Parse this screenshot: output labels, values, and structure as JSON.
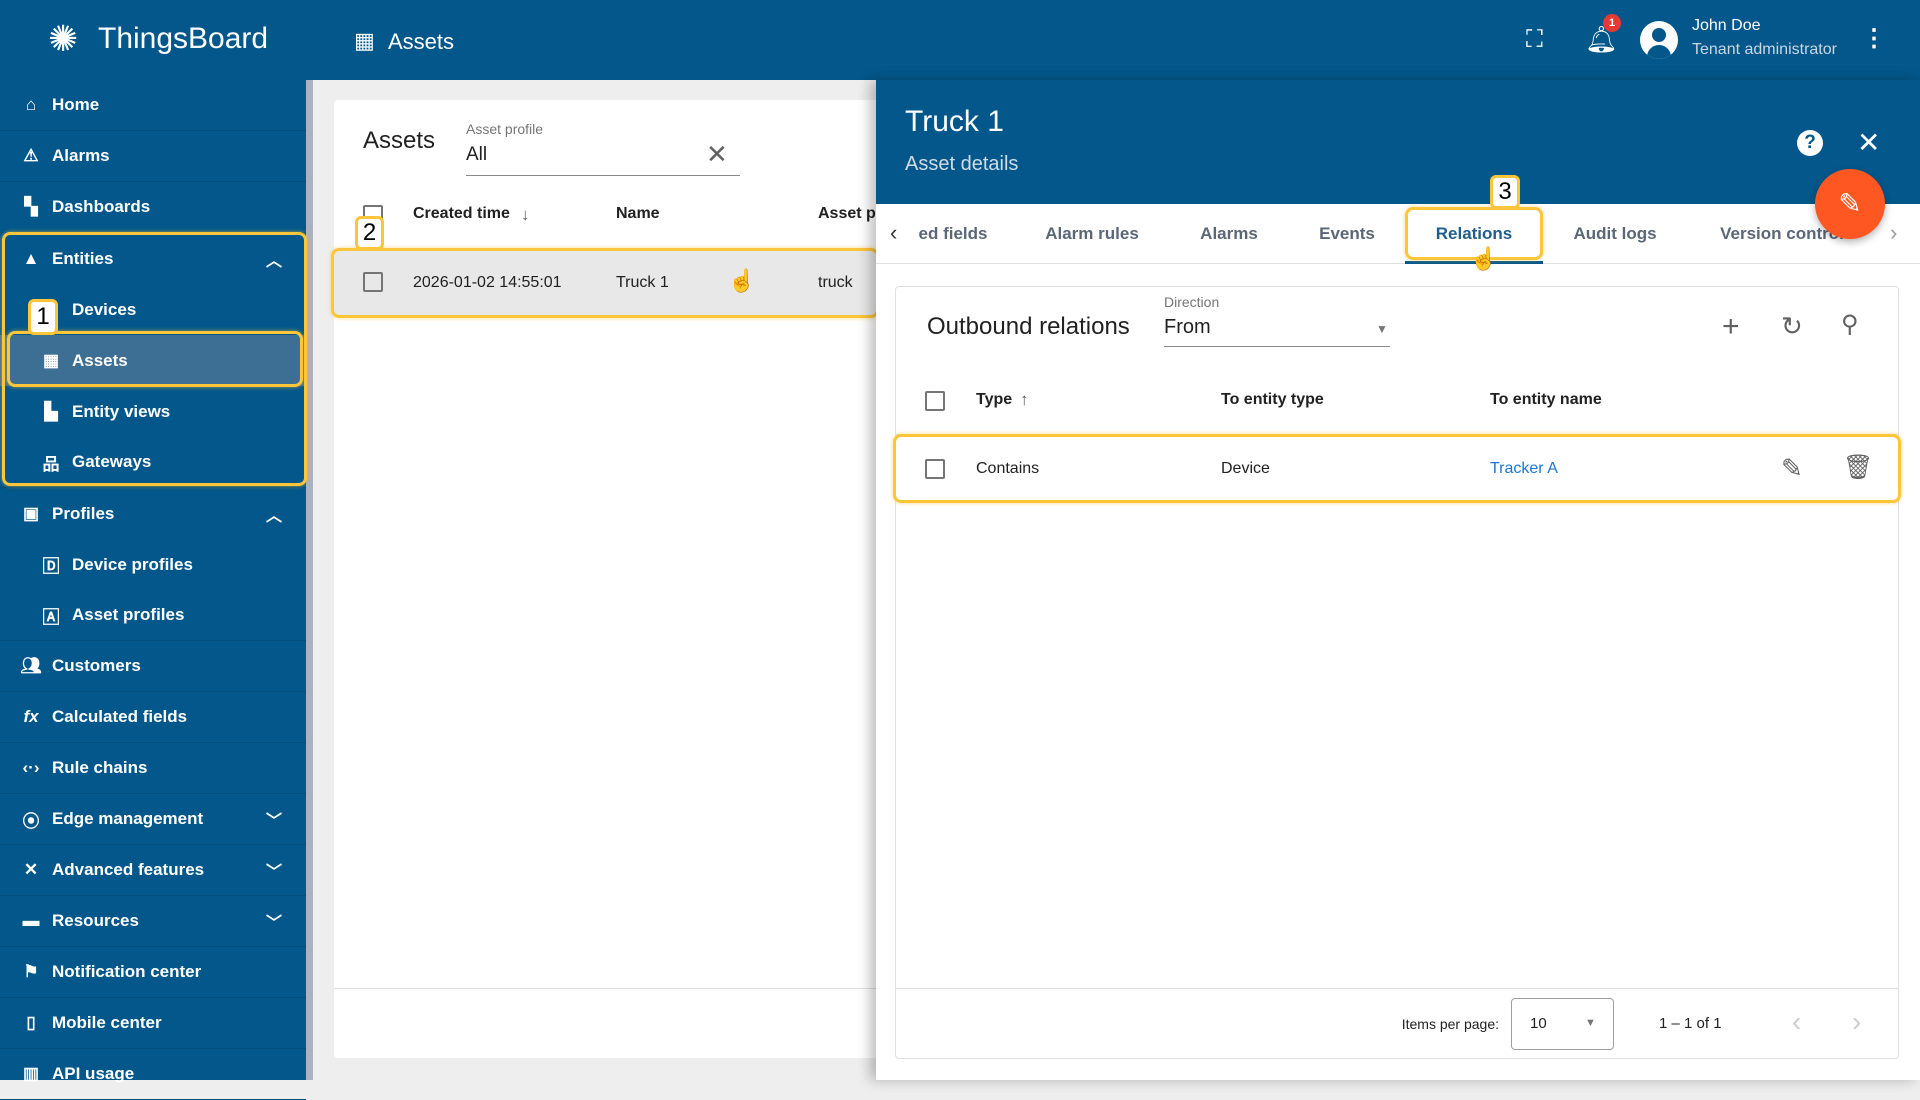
{
  "header": {
    "app_name": "ThingsBoard",
    "page_title": "Assets",
    "notification_count": "1",
    "user_name": "John Doe",
    "user_role": "Tenant administrator"
  },
  "sidebar": {
    "items": [
      {
        "label": "Home",
        "icon": "home-icon"
      },
      {
        "label": "Alarms",
        "icon": "warning-icon"
      },
      {
        "label": "Dashboards",
        "icon": "dashboard-icon"
      },
      {
        "label": "Entities",
        "icon": "entities-icon",
        "expanded": true
      },
      {
        "label": "Devices",
        "icon": "device-icon"
      },
      {
        "label": "Assets",
        "icon": "domain-icon",
        "selected": true
      },
      {
        "label": "Entity views",
        "icon": "view-quilt-icon"
      },
      {
        "label": "Gateways",
        "icon": "gateway-icon"
      },
      {
        "label": "Profiles",
        "icon": "badge-icon",
        "expanded": true
      },
      {
        "label": "Device profiles",
        "icon": "device-profile-icon"
      },
      {
        "label": "Asset profiles",
        "icon": "asset-profile-icon"
      },
      {
        "label": "Customers",
        "icon": "supervisor-icon"
      },
      {
        "label": "Calculated fields",
        "icon": "function-icon"
      },
      {
        "label": "Rule chains",
        "icon": "settings-ethernet-icon"
      },
      {
        "label": "Edge management",
        "icon": "router-icon"
      },
      {
        "label": "Advanced features",
        "icon": "build-icon"
      },
      {
        "label": "Resources",
        "icon": "folder-icon"
      },
      {
        "label": "Notification center",
        "icon": "flag-icon"
      },
      {
        "label": "Mobile center",
        "icon": "smartphone-icon"
      },
      {
        "label": "API usage",
        "icon": "insert-chart-icon"
      }
    ]
  },
  "annotations": [
    "1",
    "2",
    "3"
  ],
  "assets": {
    "title": "Assets",
    "profile_label": "Asset profile",
    "profile_value": "All",
    "columns": [
      "Created time",
      "Name",
      "Asset p"
    ],
    "rows": [
      {
        "created": "2026-01-02 14:55:01",
        "name": "Truck 1",
        "profile": "truck"
      }
    ]
  },
  "details": {
    "title": "Truck 1",
    "subtitle": "Asset details",
    "tabs": [
      "ed fields",
      "Alarm rules",
      "Alarms",
      "Events",
      "Relations",
      "Audit logs",
      "Version control"
    ],
    "active_tab": "Relations",
    "relations": {
      "title": "Outbound relations",
      "direction_label": "Direction",
      "direction_value": "From",
      "columns": [
        "Type",
        "To entity type",
        "To entity name"
      ],
      "rows": [
        {
          "type": "Contains",
          "entity_type": "Device",
          "entity_name": "Tracker A"
        }
      ],
      "items_per_page_label": "Items per page:",
      "items_per_page": "10",
      "range": "1 – 1 of 1"
    }
  },
  "colors": {
    "primary": "#03578a",
    "accent": "#ff5722",
    "highlight": "#fcc53a",
    "link": "#1976d2"
  }
}
